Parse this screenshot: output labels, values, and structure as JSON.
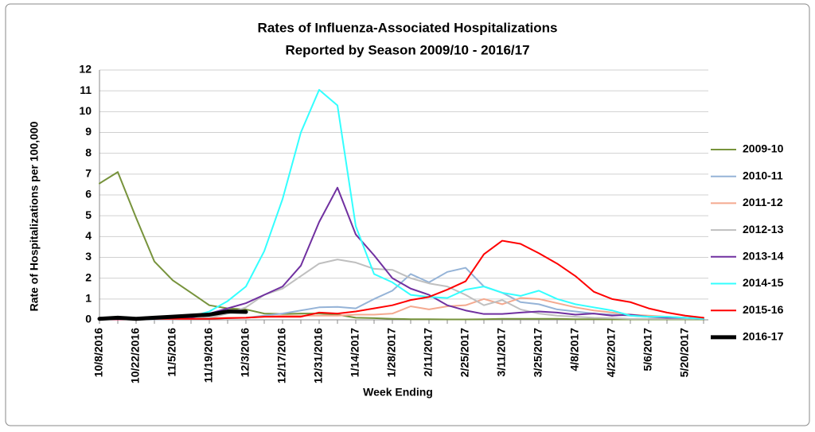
{
  "chart_data": {
    "type": "line",
    "title": "Rates of Influenza-Associated Hospitalizations",
    "subtitle": "Reported by Season 2009/10 - 2016/17",
    "x_label": "Week Ending",
    "y_label": "Rate of Hospitalizations per 100,000",
    "categories": [
      "10/8/2016",
      null,
      "10/22/2016",
      null,
      "11/5/2016",
      null,
      "11/19/2016",
      null,
      "12/3/2016",
      null,
      "12/17/2016",
      null,
      "12/31/2016",
      null,
      "1/14/2017",
      null,
      "1/28/2017",
      null,
      "2/11/2017",
      null,
      "2/25/2017",
      null,
      "3/11/2017",
      null,
      "3/25/2017",
      null,
      "4/8/2017",
      null,
      "4/22/2017",
      null,
      "5/6/2017",
      null,
      "5/20/2017",
      null
    ],
    "ylim": [
      0,
      12
    ],
    "yticks": [
      0,
      1,
      2,
      3,
      4,
      5,
      6,
      7,
      8,
      9,
      10,
      11,
      12
    ],
    "grid": true,
    "legend": "right",
    "series": [
      {
        "name": "2009-10",
        "color": "#77933c",
        "width": 2,
        "values": [
          6.55,
          7.1,
          4.9,
          2.8,
          1.9,
          1.3,
          0.7,
          0.55,
          0.5,
          0.3,
          0.28,
          0.3,
          0.3,
          0.25,
          0.1,
          0.08,
          0.05,
          0.03,
          0.03,
          0.02,
          0.02,
          0.03,
          0.05,
          0.05,
          0.05,
          0.05,
          0.03,
          0.03,
          0.02,
          0.02,
          0.02,
          0.02,
          0.02,
          0.02
        ]
      },
      {
        "name": "2010-11",
        "color": "#95b3d7",
        "width": 2,
        "values": [
          0.02,
          0.02,
          0.02,
          0.03,
          0.03,
          0.05,
          0.05,
          0.08,
          0.1,
          0.2,
          0.3,
          0.45,
          0.6,
          0.62,
          0.55,
          1.0,
          1.4,
          2.2,
          1.8,
          2.3,
          2.5,
          1.6,
          1.3,
          0.85,
          0.75,
          0.5,
          0.4,
          0.3,
          0.25,
          0.2,
          0.15,
          0.15,
          0.1,
          0.05
        ]
      },
      {
        "name": "2011-12",
        "color": "#f4a98f",
        "width": 2,
        "values": [
          0.05,
          0.05,
          0.05,
          0.05,
          0.05,
          0.05,
          0.08,
          0.1,
          0.1,
          0.15,
          0.2,
          0.2,
          0.2,
          0.2,
          0.25,
          0.25,
          0.3,
          0.65,
          0.5,
          0.65,
          0.7,
          1.0,
          0.75,
          1.05,
          1.0,
          0.8,
          0.6,
          0.45,
          0.35,
          0.25,
          0.2,
          0.15,
          0.1,
          0.05
        ]
      },
      {
        "name": "2012-13",
        "color": "#bfbfbf",
        "width": 2,
        "values": [
          0.05,
          0.05,
          0.05,
          0.05,
          0.05,
          0.08,
          0.1,
          0.3,
          0.6,
          1.2,
          1.5,
          2.1,
          2.7,
          2.9,
          2.75,
          2.45,
          2.4,
          2.0,
          1.75,
          1.6,
          1.2,
          0.7,
          0.95,
          0.5,
          0.3,
          0.2,
          0.15,
          0.1,
          0.08,
          0.05,
          0.05,
          0.05,
          0.05,
          0.05
        ]
      },
      {
        "name": "2013-14",
        "color": "#7030a0",
        "width": 2,
        "values": [
          0.02,
          0.02,
          0.03,
          0.05,
          0.08,
          0.1,
          0.3,
          0.55,
          0.8,
          1.2,
          1.6,
          2.6,
          4.7,
          6.35,
          4.1,
          3.1,
          2.0,
          1.5,
          1.2,
          0.7,
          0.45,
          0.28,
          0.28,
          0.35,
          0.4,
          0.35,
          0.25,
          0.3,
          0.2,
          0.25,
          0.15,
          0.1,
          0.1,
          0.05
        ]
      },
      {
        "name": "2014-15",
        "color": "#33ffff",
        "width": 2,
        "values": [
          0.05,
          0.05,
          0.05,
          0.08,
          0.1,
          0.15,
          0.4,
          0.9,
          1.6,
          3.3,
          5.8,
          9.0,
          11.05,
          10.3,
          4.5,
          2.2,
          1.8,
          1.2,
          1.1,
          1.05,
          1.45,
          1.6,
          1.3,
          1.15,
          1.4,
          1.0,
          0.75,
          0.6,
          0.45,
          0.2,
          0.15,
          0.15,
          0.1,
          0.05
        ]
      },
      {
        "name": "2015-16",
        "color": "#ff0000",
        "width": 2,
        "values": [
          0.03,
          0.03,
          0.03,
          0.05,
          0.05,
          0.05,
          0.05,
          0.08,
          0.1,
          0.15,
          0.15,
          0.15,
          0.35,
          0.3,
          0.4,
          0.55,
          0.7,
          0.95,
          1.1,
          1.45,
          1.85,
          3.15,
          3.8,
          3.65,
          3.2,
          2.7,
          2.1,
          1.35,
          1.0,
          0.85,
          0.55,
          0.35,
          0.2,
          0.1
        ]
      },
      {
        "name": "2016-17",
        "color": "#000000",
        "width": 5,
        "values": [
          0.05,
          0.1,
          0.05,
          0.1,
          0.15,
          0.2,
          0.25,
          0.4,
          0.38,
          null,
          null,
          null,
          null,
          null,
          null,
          null,
          null,
          null,
          null,
          null,
          null,
          null,
          null,
          null,
          null,
          null,
          null,
          null,
          null,
          null,
          null,
          null,
          null,
          null
        ]
      }
    ]
  }
}
